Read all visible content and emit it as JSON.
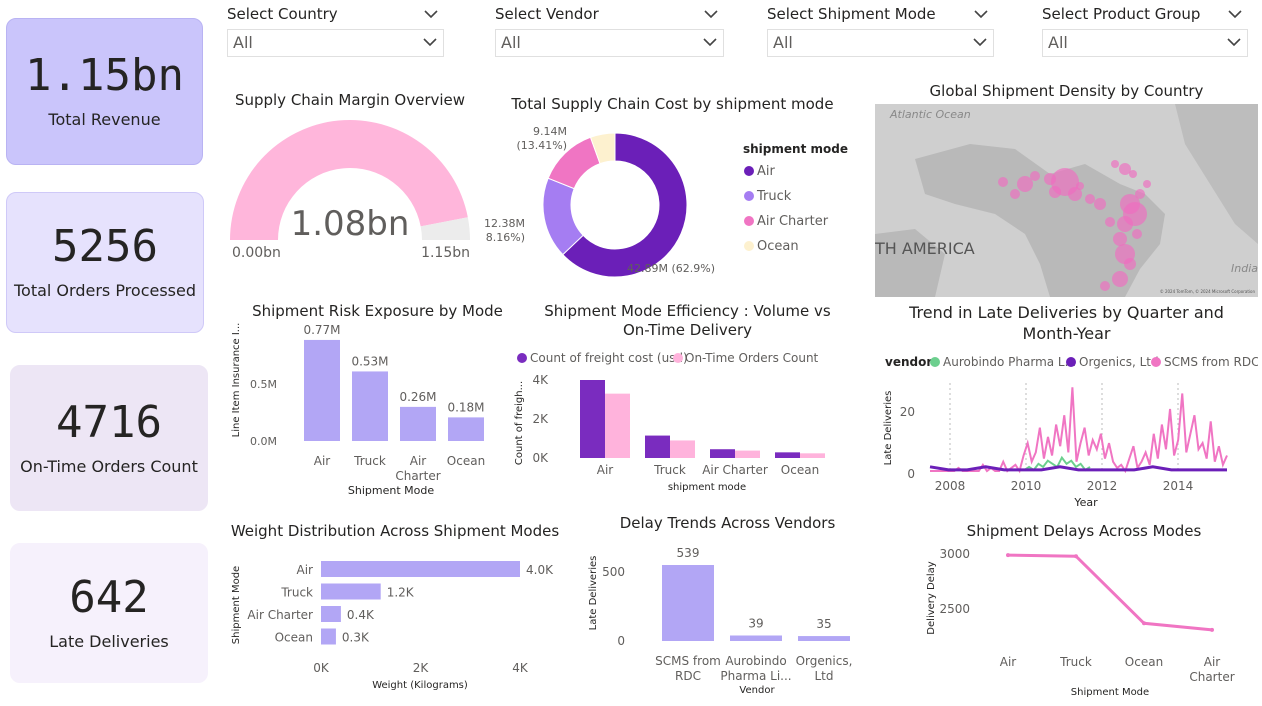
{
  "kpis": [
    {
      "value": "1.15bn",
      "label": "Total Revenue",
      "bg": "#cac5fb",
      "border": "#b9b3f3"
    },
    {
      "value": "5256",
      "label": "Total Orders Processed",
      "bg": "#e6e2fd",
      "border": "#cfc9f8"
    },
    {
      "value": "4716",
      "label": "On-Time Orders Count",
      "bg": "#ede6f5",
      "border": "#ede6f5"
    },
    {
      "value": "642",
      "label": "Late Deliveries",
      "bg": "#f6f1fc",
      "border": "#f6f1fc"
    }
  ],
  "slicers": [
    {
      "label": "Select Country",
      "value": "All"
    },
    {
      "label": "Select Vendor",
      "value": "All"
    },
    {
      "label": "Select Shipment Mode",
      "value": "All"
    },
    {
      "label": "Select Product Group",
      "value": "All"
    }
  ],
  "gauge": {
    "title": "Supply Chain Margin Overview",
    "value_label": "1.08bn",
    "min_label": "0.00bn",
    "max_label": "1.15bn",
    "value": 1.08,
    "min": 0,
    "max": 1.15,
    "fill": "#ffb6db",
    "rest": "#ececec"
  },
  "donut": {
    "title": "Total Supply Chain Cost by shipment mode",
    "legend_title": "shipment mode",
    "slices": [
      {
        "name": "Air",
        "value": 42.89,
        "label": "42.89M (62.9%)",
        "color": "#6b1fb8"
      },
      {
        "name": "Truck",
        "value": 12.38,
        "label": "12.38M (18.16%)",
        "color": "#a57df2"
      },
      {
        "name": "Air Charter",
        "value": 9.14,
        "label": "9.14M (13.41%)",
        "color": "#f075c3"
      },
      {
        "name": "Ocean",
        "value": 3.77,
        "label": "",
        "color": "#fdf1cf"
      }
    ]
  },
  "map": {
    "title": "Global Shipment Density by Country",
    "labels": [
      "Atlantic Ocean",
      "TH AMERICA",
      "India"
    ],
    "credit": "© 2024 TomTom, © 2024 Microsoft Corporation"
  },
  "risk": {
    "title": "Shipment Risk Exposure by Mode",
    "ylabel": "Line Item Insurance I...",
    "xlabel": "Shipment Mode",
    "yticks": [
      "0.5M",
      "0.0M"
    ],
    "categories": [
      "Air",
      "Truck",
      "Air Charter",
      "Ocean"
    ],
    "values": [
      0.77,
      0.53,
      0.26,
      0.18
    ],
    "value_labels": [
      "0.77M",
      "0.53M",
      "0.26M",
      "0.18M"
    ],
    "color": "#b2a6f5"
  },
  "efficiency": {
    "title_line1": "Shipment Mode Efficiency : Volume vs",
    "title_line2": "On-Time Delivery",
    "ylabel": "Count of freigh...",
    "xlabel": "shipment mode",
    "yticks": [
      "4K",
      "2K",
      "0K"
    ],
    "categories": [
      "Air",
      "Truck",
      "Air Charter",
      "Ocean"
    ],
    "series": [
      {
        "name": "Count of freight cost (usd)",
        "values": [
          4000,
          1150,
          450,
          290
        ],
        "color": "#7a2cbf"
      },
      {
        "name": "On-Time Orders Count",
        "values": [
          3300,
          900,
          380,
          240
        ],
        "color": "#ffb3dc"
      }
    ]
  },
  "trend": {
    "title_line1": "Trend in Late Deliveries by Quarter and",
    "title_line2": "Month-Year",
    "legend_title": "vendor",
    "ylabel": "Late Deliveries",
    "xlabel": "Year",
    "yticks": [
      "20",
      "0"
    ],
    "xticks": [
      "2008",
      "2010",
      "2012",
      "2014"
    ],
    "series": [
      {
        "name": "Aurobindo Pharma L...",
        "color": "#6ccf8e"
      },
      {
        "name": "Orgenics, Ltd",
        "color": "#6b1fb8"
      },
      {
        "name": "SCMS from RDC",
        "color": "#f075c3"
      }
    ]
  },
  "weight": {
    "title": "Weight Distribution Across Shipment Modes",
    "ylabel": "Shipment Mode",
    "xlabel": "Weight (Kilograms)",
    "xticks": [
      "0K",
      "2K",
      "4K"
    ],
    "categories": [
      "Air",
      "Truck",
      "Air Charter",
      "Ocean"
    ],
    "values": [
      4000,
      1200,
      400,
      300
    ],
    "value_labels": [
      "4.0K",
      "1.2K",
      "0.4K",
      "0.3K"
    ],
    "color": "#b2a6f5"
  },
  "vendors": {
    "title": "Delay Trends Across Vendors",
    "ylabel": "Late Deliveries",
    "xlabel": "Vendor",
    "yticks": [
      "500",
      "0"
    ],
    "categories": [
      [
        "SCMS from",
        "RDC"
      ],
      [
        "Aurobindo",
        "Pharma Li..."
      ],
      [
        "Orgenics,",
        "Ltd"
      ]
    ],
    "values": [
      539,
      39,
      35
    ],
    "value_labels": [
      "539",
      "39",
      "35"
    ],
    "color": "#b2a6f5"
  },
  "delays": {
    "title": "Shipment Delays Across Modes",
    "ylabel": "Delivery Delay",
    "xlabel": "Shipment Mode",
    "yticks": [
      "3000",
      "2500"
    ],
    "categories": [
      [
        "Air"
      ],
      [
        "Truck"
      ],
      [
        "Ocean"
      ],
      [
        "Air",
        "Charter"
      ]
    ],
    "values": [
      2990,
      2980,
      2370,
      2310
    ],
    "color": "#f075c3"
  }
}
